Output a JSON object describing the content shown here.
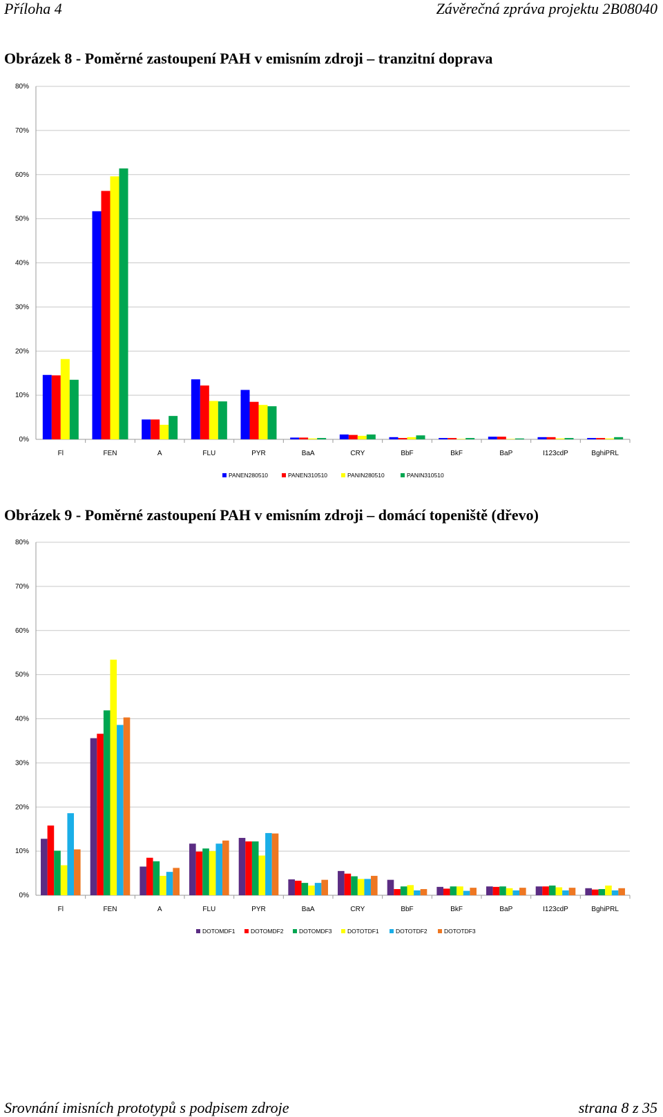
{
  "header": {
    "left": "Příloha 4",
    "right": "Závěrečná zpráva projektu 2B08040"
  },
  "figures": [
    {
      "title": "Obrázek 8 - Poměrné zastoupení PAH v emisním zdroji – tranzitní doprava"
    },
    {
      "title": "Obrázek 9 - Poměrné zastoupení PAH v emisním zdroji – domácí topeniště (dřevo)"
    }
  ],
  "footer": {
    "left": "Srovnání imisních prototypů s podpisem zdroje",
    "right": "strana 8 z 35"
  },
  "chart_data": [
    {
      "type": "bar",
      "title": "",
      "xlabel": "",
      "ylabel": "",
      "ylim": [
        0,
        80
      ],
      "y_ticks": [
        "0%",
        "10%",
        "20%",
        "30%",
        "40%",
        "50%",
        "60%",
        "70%",
        "80%"
      ],
      "grid": true,
      "legend_position": "bottom",
      "categories": [
        "Fl",
        "FEN",
        "A",
        "FLU",
        "PYR",
        "BaA",
        "CRY",
        "BbF",
        "BkF",
        "BaP",
        "I123cdP",
        "BghiPRL"
      ],
      "series": [
        {
          "name": "PANEN280510",
          "color": "#0000FF",
          "values": [
            14.6,
            51.7,
            4.5,
            13.6,
            11.2,
            0.4,
            1.1,
            0.5,
            0.3,
            0.6,
            0.5,
            0.3
          ]
        },
        {
          "name": "PANEN310510",
          "color": "#FF0000",
          "values": [
            14.5,
            56.3,
            4.5,
            12.2,
            8.5,
            0.4,
            1.0,
            0.3,
            0.3,
            0.6,
            0.5,
            0.3
          ]
        },
        {
          "name": "PANIN280510",
          "color": "#FFFF00",
          "values": [
            18.2,
            59.6,
            3.3,
            8.7,
            7.8,
            0.2,
            0.8,
            0.5,
            0.1,
            0.1,
            0.2,
            0.2
          ]
        },
        {
          "name": "PANIN310510",
          "color": "#00A651",
          "values": [
            13.5,
            61.4,
            5.3,
            8.6,
            7.5,
            0.3,
            1.1,
            0.9,
            0.3,
            0.2,
            0.3,
            0.5
          ]
        }
      ]
    },
    {
      "type": "bar",
      "title": "",
      "xlabel": "",
      "ylabel": "",
      "ylim": [
        0,
        80
      ],
      "y_ticks": [
        "0%",
        "10%",
        "20%",
        "30%",
        "40%",
        "50%",
        "60%",
        "70%",
        "80%"
      ],
      "grid": true,
      "legend_position": "bottom",
      "categories": [
        "Fl",
        "FEN",
        "A",
        "FLU",
        "PYR",
        "BaA",
        "CRY",
        "BbF",
        "BkF",
        "BaP",
        "I123cdP",
        "BghiPRL"
      ],
      "series": [
        {
          "name": "DOTOMDF1",
          "color": "#5B2C83",
          "values": [
            12.8,
            35.6,
            6.5,
            11.7,
            13.0,
            3.6,
            5.5,
            3.5,
            1.9,
            2.0,
            2.0,
            1.6
          ]
        },
        {
          "name": "DOTOMDF2",
          "color": "#FF0000",
          "values": [
            15.8,
            36.6,
            8.5,
            9.9,
            12.2,
            3.3,
            4.9,
            1.4,
            1.5,
            1.9,
            2.0,
            1.3
          ]
        },
        {
          "name": "DOTOMDF3",
          "color": "#00A651",
          "values": [
            10.1,
            41.9,
            7.7,
            10.6,
            12.2,
            2.8,
            4.3,
            2.0,
            2.0,
            2.0,
            2.2,
            1.4
          ]
        },
        {
          "name": "DOTOTDF1",
          "color": "#FFFF00",
          "values": [
            6.8,
            53.4,
            4.4,
            10.0,
            9.0,
            2.2,
            3.7,
            2.3,
            2.0,
            1.6,
            1.8,
            2.2
          ]
        },
        {
          "name": "DOTOTDF2",
          "color": "#1AAEE8",
          "values": [
            18.6,
            38.6,
            5.3,
            11.7,
            14.1,
            2.8,
            3.7,
            1.1,
            1.0,
            1.1,
            1.1,
            1.1
          ]
        },
        {
          "name": "DOTOTDF3",
          "color": "#EE7722",
          "values": [
            10.4,
            40.3,
            6.2,
            12.4,
            14.0,
            3.5,
            4.4,
            1.4,
            1.7,
            1.7,
            1.7,
            1.6
          ]
        }
      ]
    }
  ]
}
